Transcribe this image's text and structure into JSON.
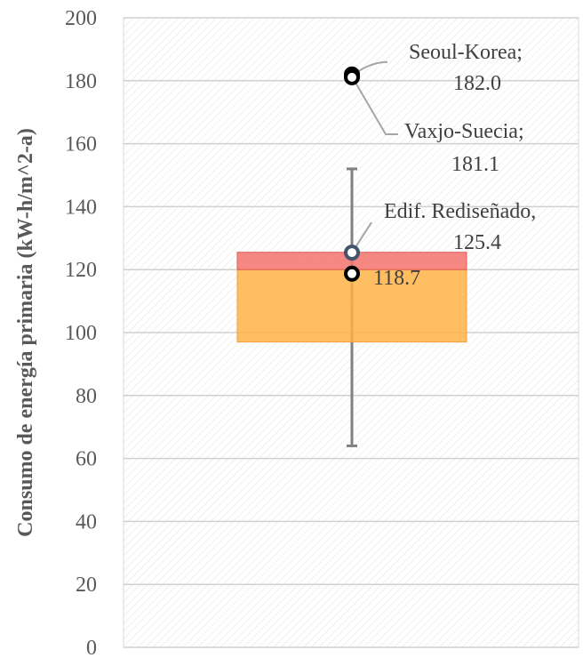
{
  "chart_data": {
    "type": "box",
    "title": "",
    "xlabel": "",
    "ylabel": "Consumo de energía primaria (kW-h/m^2-a)",
    "ylim": [
      0,
      200
    ],
    "yticks": [
      0,
      20,
      40,
      60,
      80,
      100,
      120,
      140,
      160,
      180,
      200
    ],
    "grid": true,
    "box": {
      "whisker_low": 64,
      "q1": 97,
      "median": 120,
      "q3": 125.5,
      "whisker_high": 152,
      "mean": 118.7,
      "mean_label": "118.7",
      "lower_color": "#FFB347",
      "upper_color": "#F4736E"
    },
    "points": [
      {
        "name": "Seoul-Korea",
        "value": 182.0,
        "label": "Seoul-Korea;",
        "value_label": "182.0"
      },
      {
        "name": "Vaxjo-Suecia",
        "value": 181.1,
        "label": "Vaxjo-Suecia;",
        "value_label": "181.1"
      },
      {
        "name": "Edif. Rediseñado",
        "value": 125.4,
        "label": "Edif. Rediseñado,",
        "value_label": "125.4"
      }
    ]
  }
}
